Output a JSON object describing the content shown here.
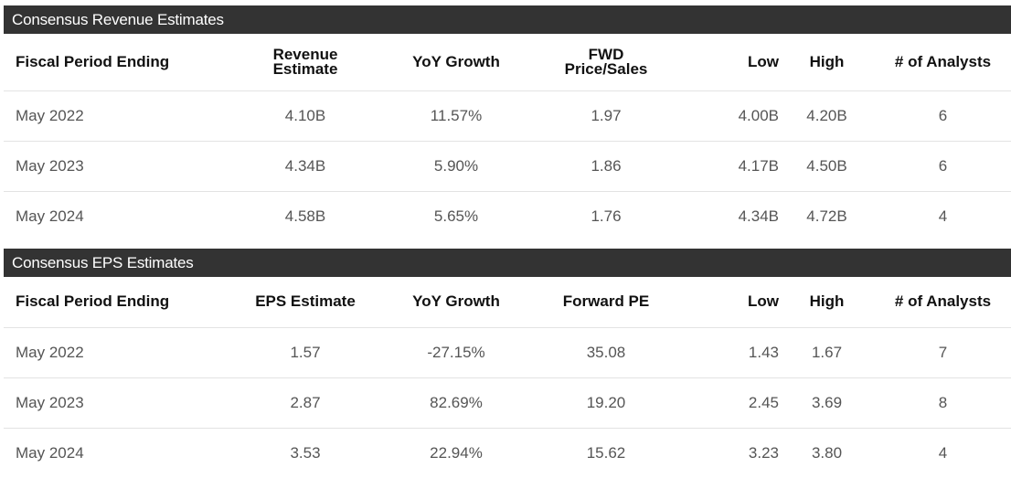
{
  "revenue": {
    "title": "Consensus Revenue Estimates",
    "headers": {
      "period": "Fiscal Period Ending",
      "estimate_line1": "Revenue",
      "estimate_line2": "Estimate",
      "growth": "YoY Growth",
      "ratio_line1": "FWD",
      "ratio_line2": "Price/Sales",
      "low": "Low",
      "high": "High",
      "analysts": "# of Analysts"
    },
    "rows": [
      {
        "period": "May 2022",
        "estimate": "4.10B",
        "growth": "11.57%",
        "ratio": "1.97",
        "low": "4.00B",
        "high": "4.20B",
        "analysts": "6"
      },
      {
        "period": "May 2023",
        "estimate": "4.34B",
        "growth": "5.90%",
        "ratio": "1.86",
        "low": "4.17B",
        "high": "4.50B",
        "analysts": "6"
      },
      {
        "period": "May 2024",
        "estimate": "4.58B",
        "growth": "5.65%",
        "ratio": "1.76",
        "low": "4.34B",
        "high": "4.72B",
        "analysts": "4"
      }
    ]
  },
  "eps": {
    "title": "Consensus EPS Estimates",
    "headers": {
      "period": "Fiscal Period Ending",
      "estimate": "EPS Estimate",
      "growth": "YoY Growth",
      "ratio": "Forward PE",
      "low": "Low",
      "high": "High",
      "analysts": "# of Analysts"
    },
    "rows": [
      {
        "period": "May 2022",
        "estimate": "1.57",
        "growth": "-27.15%",
        "ratio": "35.08",
        "low": "1.43",
        "high": "1.67",
        "analysts": "7"
      },
      {
        "period": "May 2023",
        "estimate": "2.87",
        "growth": "82.69%",
        "ratio": "19.20",
        "low": "2.45",
        "high": "3.69",
        "analysts": "8"
      },
      {
        "period": "May 2024",
        "estimate": "3.53",
        "growth": "22.94%",
        "ratio": "15.62",
        "low": "3.23",
        "high": "3.80",
        "analysts": "4"
      }
    ]
  }
}
